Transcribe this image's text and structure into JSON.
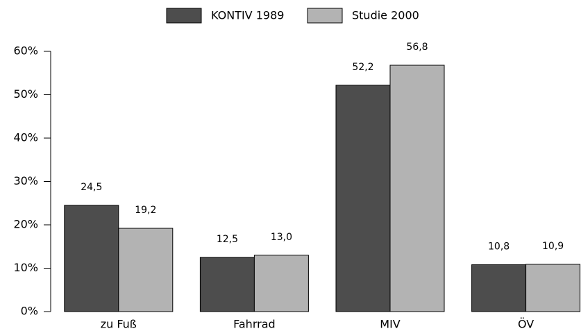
{
  "chart_data": {
    "type": "bar",
    "categories": [
      "zu Fuß",
      "Fahrrad",
      "MIV",
      "ÖV"
    ],
    "series": [
      {
        "name": "KONTIV 1989",
        "color": "#4d4d4d",
        "values": [
          24.5,
          12.5,
          52.2,
          10.8
        ],
        "value_labels": [
          "24,5",
          "12,5",
          "52,2",
          "10,8"
        ]
      },
      {
        "name": "Studie 2000",
        "color": "#b3b3b3",
        "values": [
          19.2,
          13.0,
          56.8,
          10.9
        ],
        "value_labels": [
          "19,2",
          "13,0",
          "56,8",
          "10,9"
        ]
      }
    ],
    "ylim": [
      0,
      60
    ],
    "yticks": [
      {
        "value": 0,
        "label": "0%"
      },
      {
        "value": 10,
        "label": "10%"
      },
      {
        "value": 20,
        "label": "20%"
      },
      {
        "value": 30,
        "label": "30%"
      },
      {
        "value": 40,
        "label": "40%"
      },
      {
        "value": 50,
        "label": "50%"
      },
      {
        "value": 60,
        "label": "60%"
      }
    ],
    "legend": "top"
  }
}
